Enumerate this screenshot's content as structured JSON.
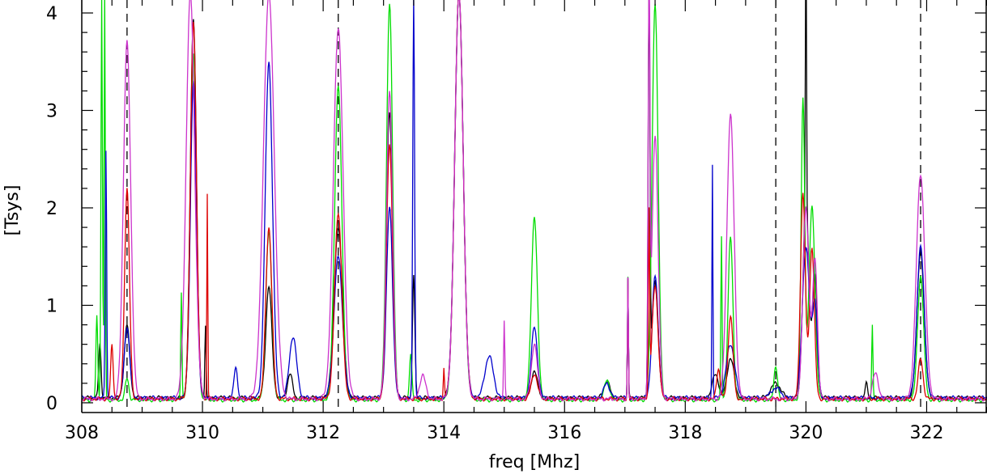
{
  "chart_data": {
    "type": "line",
    "title": "",
    "xlabel": "freq [Mhz]",
    "ylabel": "[Tsys]",
    "xlim": [
      308,
      323
    ],
    "ylim": [
      -0.1,
      4.05
    ],
    "x_ticks": [
      308,
      310,
      312,
      314,
      316,
      318,
      320,
      322
    ],
    "y_ticks": [
      0,
      1,
      2,
      3,
      4
    ],
    "grid": false,
    "vlines_dashed": [
      308.75,
      312.25,
      319.5,
      321.9
    ],
    "colors": {
      "axis": "#000000",
      "s1": "#000000",
      "s2": "#00dd00",
      "s3": "#0000cc",
      "s4": "#dd0000",
      "s5": "#cc33cc"
    },
    "series": [
      {
        "color": "#000000",
        "base": 0.05,
        "peaks": [
          [
            308.3,
            0.6,
            0.02
          ],
          [
            308.75,
            0.8,
            0.045
          ],
          [
            309.85,
            3.95,
            0.05
          ],
          [
            310.05,
            0.8,
            0.01
          ],
          [
            311.1,
            1.2,
            0.05
          ],
          [
            311.45,
            0.3,
            0.04
          ],
          [
            312.25,
            1.8,
            0.07
          ],
          [
            313.1,
            3.0,
            0.05
          ],
          [
            313.5,
            1.3,
            0.02
          ],
          [
            314.25,
            4.2,
            0.07
          ],
          [
            315.5,
            0.33,
            0.05
          ],
          [
            316.7,
            0.22,
            0.05
          ],
          [
            317.05,
            1.28,
            0.008
          ],
          [
            317.4,
            4.2,
            0.015
          ],
          [
            317.5,
            1.25,
            0.05
          ],
          [
            318.5,
            0.3,
            0.05
          ],
          [
            318.75,
            0.45,
            0.06
          ],
          [
            319.5,
            0.2,
            0.08
          ],
          [
            320.0,
            3.55,
            0.008
          ],
          [
            320.0,
            2.05,
            0.05
          ],
          [
            320.15,
            1.3,
            0.04
          ],
          [
            321.0,
            0.2,
            0.02
          ],
          [
            321.9,
            1.55,
            0.06
          ]
        ]
      },
      {
        "color": "#00dd00",
        "base": 0.03,
        "peaks": [
          [
            308.25,
            0.9,
            0.015
          ],
          [
            308.33,
            4.2,
            0.012
          ],
          [
            308.38,
            4.2,
            0.01
          ],
          [
            308.75,
            0.25,
            0.03
          ],
          [
            309.65,
            1.15,
            0.01
          ],
          [
            309.85,
            3.6,
            0.05
          ],
          [
            311.1,
            1.75,
            0.05
          ],
          [
            312.25,
            3.25,
            0.06
          ],
          [
            313.1,
            4.1,
            0.05
          ],
          [
            313.45,
            0.5,
            0.02
          ],
          [
            314.25,
            4.2,
            0.07
          ],
          [
            315.5,
            1.9,
            0.05
          ],
          [
            316.7,
            0.22,
            0.05
          ],
          [
            317.05,
            1.28,
            0.008
          ],
          [
            317.5,
            4.1,
            0.05
          ],
          [
            318.6,
            1.7,
            0.01
          ],
          [
            318.75,
            1.7,
            0.04
          ],
          [
            319.5,
            0.38,
            0.03
          ],
          [
            319.95,
            3.1,
            0.03
          ],
          [
            320.1,
            2.0,
            0.05
          ],
          [
            321.1,
            0.8,
            0.01
          ],
          [
            321.9,
            1.3,
            0.05
          ]
        ]
      },
      {
        "color": "#0000cc",
        "base": 0.05,
        "peaks": [
          [
            308.4,
            2.6,
            0.012
          ],
          [
            308.75,
            0.78,
            0.045
          ],
          [
            309.85,
            3.3,
            0.05
          ],
          [
            310.55,
            0.35,
            0.03
          ],
          [
            311.1,
            3.5,
            0.06
          ],
          [
            311.5,
            0.68,
            0.06
          ],
          [
            312.25,
            1.5,
            0.07
          ],
          [
            313.1,
            2.0,
            0.05
          ],
          [
            313.5,
            4.2,
            0.015
          ],
          [
            314.25,
            4.2,
            0.07
          ],
          [
            314.75,
            0.48,
            0.07
          ],
          [
            315.5,
            0.78,
            0.05
          ],
          [
            316.7,
            0.2,
            0.05
          ],
          [
            317.05,
            1.28,
            0.008
          ],
          [
            317.5,
            1.3,
            0.05
          ],
          [
            318.45,
            2.45,
            0.008
          ],
          [
            318.75,
            0.6,
            0.07
          ],
          [
            319.5,
            0.15,
            0.08
          ],
          [
            320.0,
            1.6,
            0.06
          ],
          [
            320.15,
            1.0,
            0.04
          ],
          [
            321.9,
            1.6,
            0.06
          ]
        ]
      },
      {
        "color": "#dd0000",
        "base": 0.04,
        "peaks": [
          [
            308.5,
            0.6,
            0.02
          ],
          [
            308.75,
            2.2,
            0.04
          ],
          [
            309.85,
            3.9,
            0.05
          ],
          [
            310.08,
            2.15,
            0.008
          ],
          [
            311.1,
            1.8,
            0.05
          ],
          [
            312.25,
            1.95,
            0.06
          ],
          [
            313.1,
            2.65,
            0.05
          ],
          [
            314.0,
            0.35,
            0.01
          ],
          [
            314.25,
            4.2,
            0.07
          ],
          [
            315.5,
            0.3,
            0.05
          ],
          [
            317.05,
            1.28,
            0.008
          ],
          [
            317.4,
            1.85,
            0.01
          ],
          [
            317.5,
            1.2,
            0.05
          ],
          [
            318.55,
            0.35,
            0.03
          ],
          [
            318.75,
            0.9,
            0.04
          ],
          [
            319.95,
            2.15,
            0.04
          ],
          [
            320.1,
            1.6,
            0.04
          ],
          [
            321.9,
            0.45,
            0.04
          ]
        ]
      },
      {
        "color": "#cc33cc",
        "base": 0.04,
        "peaks": [
          [
            308.75,
            3.7,
            0.06
          ],
          [
            309.8,
            4.2,
            0.07
          ],
          [
            311.1,
            4.2,
            0.09
          ],
          [
            312.25,
            3.85,
            0.08
          ],
          [
            313.1,
            3.2,
            0.05
          ],
          [
            313.65,
            0.28,
            0.05
          ],
          [
            314.25,
            4.2,
            0.07
          ],
          [
            315.0,
            0.85,
            0.01
          ],
          [
            315.5,
            0.6,
            0.05
          ],
          [
            317.05,
            1.28,
            0.008
          ],
          [
            317.4,
            4.2,
            0.015
          ],
          [
            317.5,
            2.75,
            0.05
          ],
          [
            318.75,
            2.95,
            0.06
          ],
          [
            320.0,
            2.0,
            0.05
          ],
          [
            320.15,
            1.45,
            0.04
          ],
          [
            321.15,
            0.3,
            0.05
          ],
          [
            321.9,
            2.35,
            0.07
          ]
        ]
      }
    ]
  }
}
